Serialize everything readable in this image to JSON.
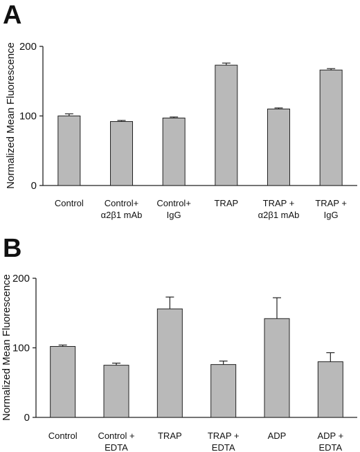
{
  "chart_data": [
    {
      "type": "bar",
      "panel_label": "A",
      "ylabel": "Normalized Mean Fluorescence",
      "ylim": [
        0,
        200
      ],
      "yticks": [
        "0",
        "100",
        "200"
      ],
      "categories": [
        [
          "Control"
        ],
        [
          "Control+",
          "α2β1 mAb"
        ],
        [
          "Control+",
          "IgG"
        ],
        [
          "TRAP"
        ],
        [
          "TRAP +",
          "α2β1 mAb"
        ],
        [
          "TRAP +",
          "IgG"
        ]
      ],
      "values": [
        100,
        92,
        97,
        173,
        110,
        166
      ],
      "errors": [
        3,
        1.5,
        1.5,
        3,
        1.5,
        2
      ],
      "bar_color": "#b9b9b9",
      "grid": false
    },
    {
      "type": "bar",
      "panel_label": "B",
      "ylabel": "Normalized Mean Fluorescence",
      "ylim": [
        0,
        200
      ],
      "yticks": [
        "0",
        "100",
        "200"
      ],
      "categories": [
        [
          "Control"
        ],
        [
          "Control +",
          "EDTA"
        ],
        [
          "TRAP"
        ],
        [
          "TRAP +",
          "EDTA"
        ],
        [
          "ADP"
        ],
        [
          "ADP +",
          "EDTA"
        ]
      ],
      "values": [
        102,
        75,
        156,
        76,
        142,
        80
      ],
      "errors": [
        2,
        3,
        17,
        5,
        30,
        13
      ],
      "bar_color": "#b9b9b9",
      "grid": false
    }
  ]
}
